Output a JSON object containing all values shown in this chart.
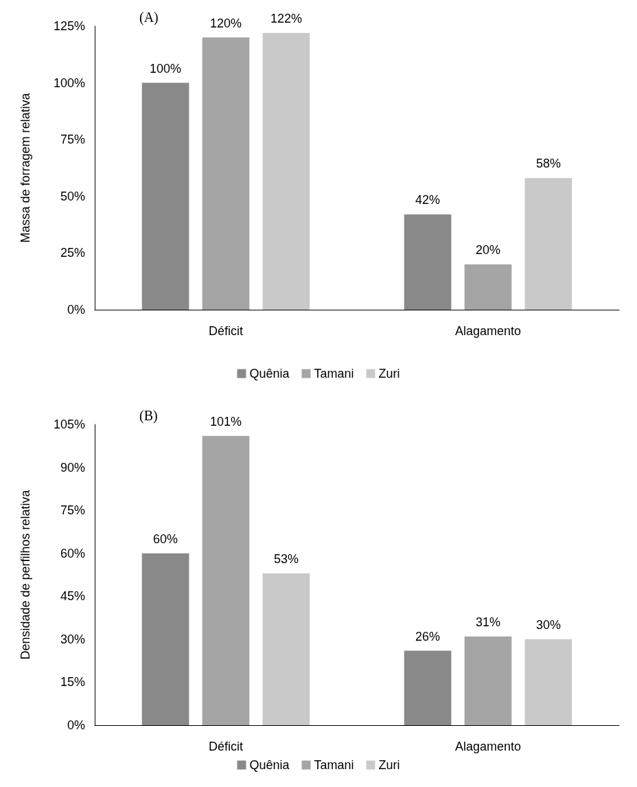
{
  "chart_data": [
    {
      "type": "bar",
      "title": "(A)",
      "ylabel": "Massa de forragem relativa",
      "categories": [
        "Déficit",
        "Alagamento"
      ],
      "series": [
        {
          "name": "Quênia",
          "color": "#898989",
          "values": [
            100,
            42
          ],
          "value_labels": [
            "100%",
            "42%"
          ]
        },
        {
          "name": "Tamani",
          "color": "#a5a5a5",
          "values": [
            120,
            20
          ],
          "value_labels": [
            "120%",
            "20%"
          ]
        },
        {
          "name": "Zuri",
          "color": "#c9c9c9",
          "values": [
            122,
            58
          ],
          "value_labels": [
            "122%",
            "58%"
          ]
        }
      ],
      "ylim": [
        0,
        125
      ],
      "yticks": [
        {
          "value": 0,
          "label": "0%"
        },
        {
          "value": 25,
          "label": "25%"
        },
        {
          "value": 50,
          "label": "50%"
        },
        {
          "value": 75,
          "label": "75%"
        },
        {
          "value": 100,
          "label": "100%"
        },
        {
          "value": 125,
          "label": "125%"
        }
      ],
      "grid": false,
      "legend": "bottom"
    },
    {
      "type": "bar",
      "title": "(B)",
      "ylabel": "Densidade de perfilhos relativa",
      "categories": [
        "Déficit",
        "Alagamento"
      ],
      "series": [
        {
          "name": "Quênia",
          "color": "#898989",
          "values": [
            60,
            26
          ],
          "value_labels": [
            "60%",
            "26%"
          ]
        },
        {
          "name": "Tamani",
          "color": "#a5a5a5",
          "values": [
            101,
            31
          ],
          "value_labels": [
            "101%",
            "31%"
          ]
        },
        {
          "name": "Zuri",
          "color": "#c9c9c9",
          "values": [
            53,
            30
          ],
          "value_labels": [
            "53%",
            "30%"
          ]
        }
      ],
      "ylim": [
        0,
        105
      ],
      "yticks": [
        {
          "value": 0,
          "label": "0%"
        },
        {
          "value": 15,
          "label": "15%"
        },
        {
          "value": 30,
          "label": "30%"
        },
        {
          "value": 45,
          "label": "45%"
        },
        {
          "value": 60,
          "label": "60%"
        },
        {
          "value": 75,
          "label": "75%"
        },
        {
          "value": 90,
          "label": "90%"
        },
        {
          "value": 105,
          "label": "105%"
        }
      ],
      "grid": false,
      "legend": "bottom"
    }
  ]
}
